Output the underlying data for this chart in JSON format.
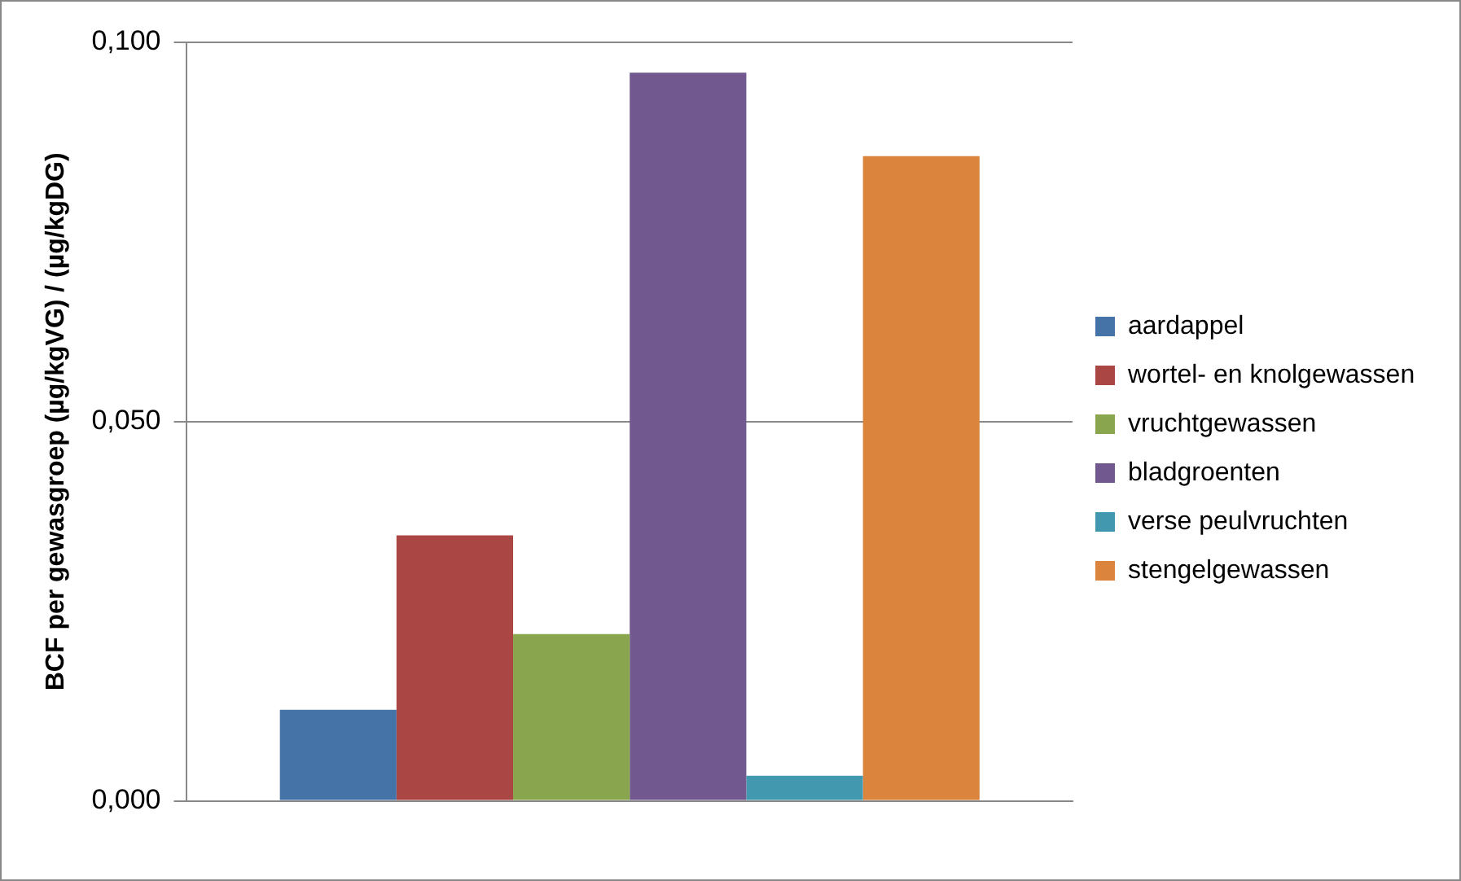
{
  "chart_data": {
    "type": "bar",
    "ylabel": "BCF per gewasgroep (µg/kgVG) / (µg/kgDG)",
    "categories": [
      null
    ],
    "series": [
      {
        "name": "aardappel",
        "color": "#4573a7",
        "values": [
          0.012
        ]
      },
      {
        "name": "wortel- en knolgewassen",
        "color": "#aa4643",
        "values": [
          0.035
        ]
      },
      {
        "name": "vruchtgewassen",
        "color": "#89a54e",
        "values": [
          0.022
        ]
      },
      {
        "name": "bladgroenten",
        "color": "#71588f",
        "values": [
          0.096
        ]
      },
      {
        "name": "verse peulvruchten",
        "color": "#4198af",
        "values": [
          0.0033
        ]
      },
      {
        "name": "stengelgewassen",
        "color": "#db843d",
        "values": [
          0.085
        ]
      }
    ],
    "ylim": [
      0,
      0.1
    ],
    "yticks": [
      {
        "value": 0,
        "label": "0,000"
      },
      {
        "value": 0.05,
        "label": "0,050"
      },
      {
        "value": 0.1,
        "label": "0,100"
      }
    ],
    "grid": "y",
    "legend": "right"
  }
}
